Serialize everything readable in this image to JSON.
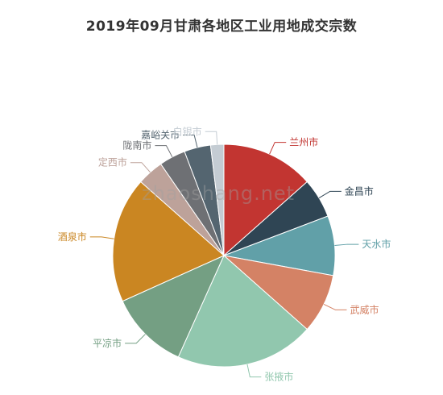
{
  "chart_data": {
    "type": "pie",
    "title": "2019年09月甘肃各地区工业用地成交宗数",
    "watermark": "zhaoshang.net",
    "slices": [
      {
        "label": "兰州市",
        "value": 14,
        "color": "#c23531"
      },
      {
        "label": "金昌市",
        "value": 6,
        "color": "#2f4554"
      },
      {
        "label": "天水市",
        "value": 9,
        "color": "#61a0a8"
      },
      {
        "label": "武威市",
        "value": 9,
        "color": "#d48265"
      },
      {
        "label": "张掖市",
        "value": 21,
        "color": "#91c7ae"
      },
      {
        "label": "平凉市",
        "value": 12,
        "color": "#749f83"
      },
      {
        "label": "酒泉市",
        "value": 19,
        "color": "#ca8622"
      },
      {
        "label": "定西市",
        "value": 4,
        "color": "#bda29a"
      },
      {
        "label": "陇南市",
        "value": 4,
        "color": "#6e7074"
      },
      {
        "label": "嘉峪关市",
        "value": 4,
        "color": "#546570"
      },
      {
        "label": "白银市",
        "value": 2,
        "color": "#c4ccd3"
      }
    ]
  }
}
